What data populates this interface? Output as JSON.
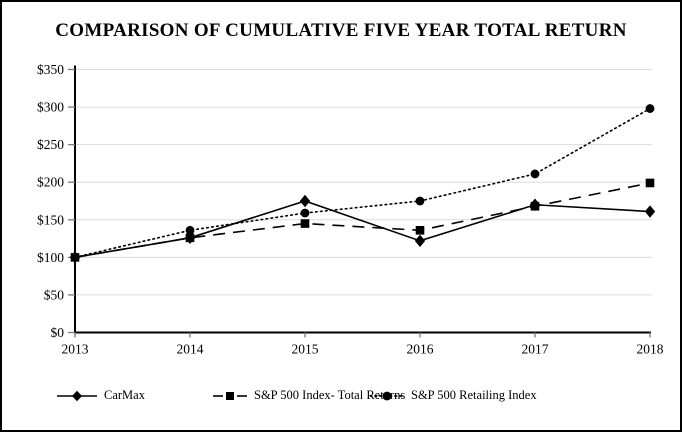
{
  "title": "COMPARISON OF CUMULATIVE FIVE YEAR TOTAL RETURN",
  "colors": {
    "background": "#ffffff",
    "border": "#000000",
    "axis": "#000000",
    "tick": "#7a7a7a",
    "grid": "#dcdcdc",
    "series": "#000000"
  },
  "chart_data": {
    "type": "line",
    "title": "COMPARISON OF CUMULATIVE FIVE YEAR TOTAL RETURN",
    "categories": [
      "2013",
      "2014",
      "2015",
      "2016",
      "2017",
      "2018"
    ],
    "series": [
      {
        "name": "CarMax",
        "marker": "diamond",
        "line_style": "solid",
        "values": [
          100,
          126,
          175,
          122,
          170,
          161
        ]
      },
      {
        "name": "S&P 500 Index- Total Returns",
        "marker": "square",
        "line_style": "dashed",
        "values": [
          100,
          126,
          145,
          136,
          168,
          199
        ]
      },
      {
        "name": "S&P 500 Retailing Index",
        "marker": "circle",
        "line_style": "dotted",
        "values": [
          100,
          136,
          159,
          175,
          211,
          298
        ]
      }
    ],
    "ylim": [
      0,
      350
    ],
    "ytick_step": 50,
    "ytick_labels": [
      "$0",
      "$50",
      "$100",
      "$150",
      "$200",
      "$250",
      "$300",
      "$350"
    ],
    "xlabel": "",
    "ylabel": "",
    "grid": true,
    "legend_position": "bottom"
  }
}
